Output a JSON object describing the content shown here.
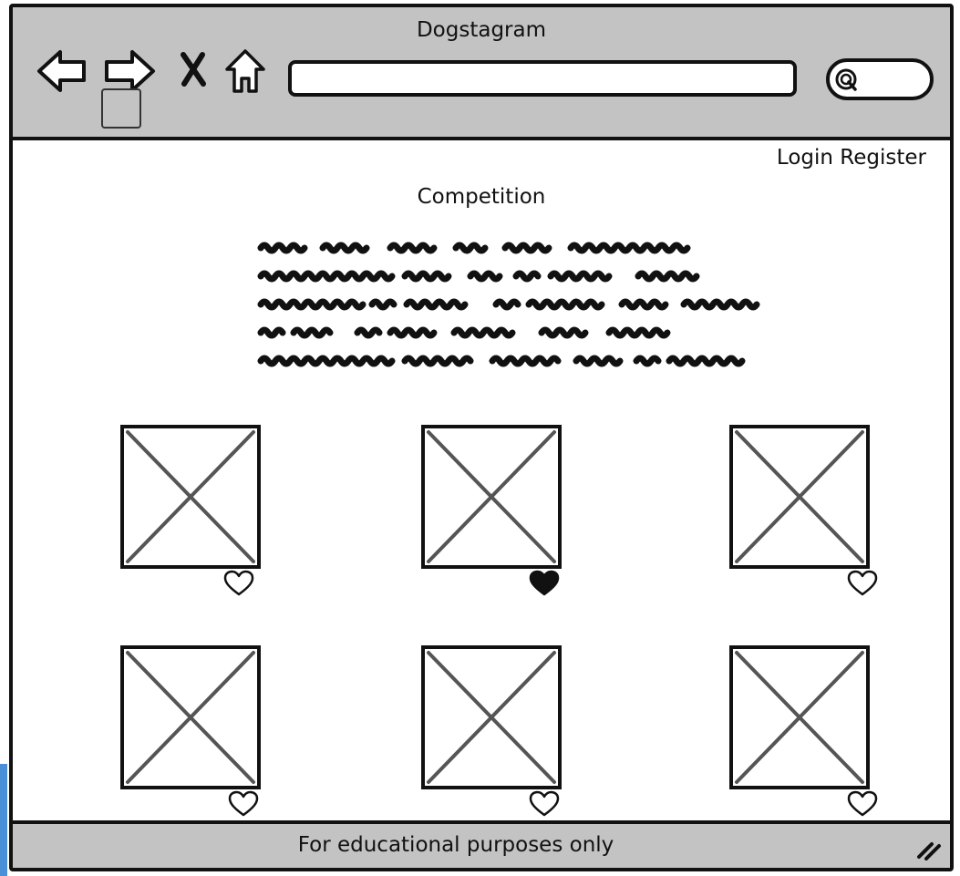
{
  "window": {
    "title": "Dogstagram"
  },
  "toolbar": {
    "icons": [
      "back-arrow-icon",
      "forward-arrow-icon",
      "close-icon",
      "home-icon",
      "search-icon"
    ],
    "url_value": ""
  },
  "header": {
    "login_label": "Login",
    "register_label": "Register"
  },
  "main": {
    "heading": "Competition"
  },
  "gallery": {
    "items": [
      {
        "liked": false
      },
      {
        "liked": true
      },
      {
        "liked": false
      },
      {
        "liked": false
      },
      {
        "liked": false
      },
      {
        "liked": false
      }
    ]
  },
  "footer": {
    "text": "For educational purposes only"
  },
  "colors": {
    "chrome": "#c3c3c3",
    "stroke": "#111111",
    "placeholder_x": "#555555",
    "accent_tab": "#4a90d9"
  }
}
